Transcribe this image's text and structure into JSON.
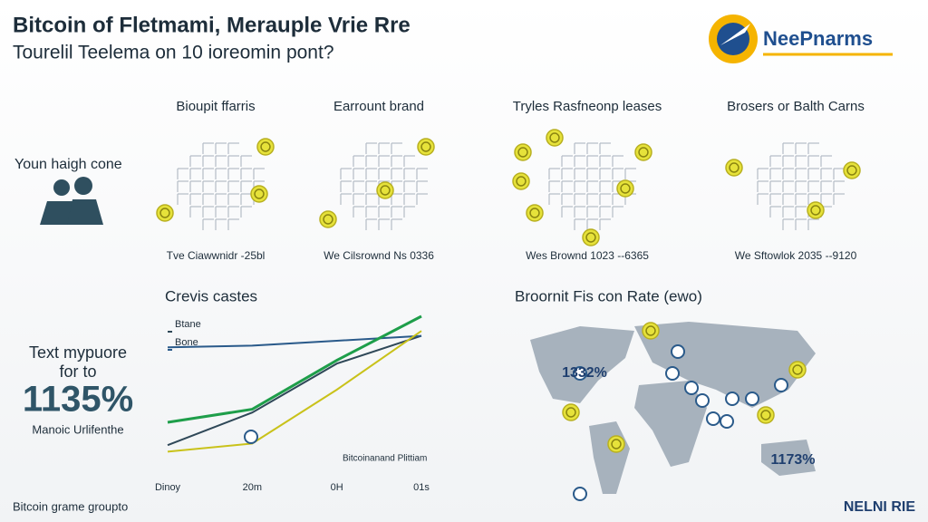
{
  "header": {
    "title": "Bitcoin of Fletmami, Merauple Vrie Rre",
    "subtitle": "Tourelil Teelema on 10 ioreomin pont?",
    "logo": "NeePnarms"
  },
  "panels": [
    {
      "title": "Bioupit ffarris",
      "caption": "Tve Ciawwnidr -25bl"
    },
    {
      "title": "Earrount brand",
      "caption": "We Cilsrownd Ns 0336"
    },
    {
      "title": "Tryles Rasfneonp leases",
      "caption": "Wes Brownd 1023 --6365"
    },
    {
      "title": "Brosers or Balth Carns",
      "caption": "We Sftowlok 2035 --9120"
    }
  ],
  "side": {
    "label": "Youn haigh cone",
    "stat_title": [
      "Text mypuore",
      "for to"
    ],
    "stat_value": "1135%",
    "stat_caption": "Manoic Urlifenthe"
  },
  "chart_data": {
    "type": "line",
    "title": "Crevis castes",
    "categories": [
      "Dinoy",
      "20m",
      "0H",
      "01s"
    ],
    "annotation": "Bitcoinanand Plittiam",
    "ylim": [
      0,
      100
    ],
    "series": [
      {
        "name": "Btane",
        "color": "#2f4858",
        "values": [
          16,
          36,
          66,
          83
        ]
      },
      {
        "name": "Bone",
        "color": "#2a5a8a",
        "values": [
          76,
          77,
          80,
          83
        ]
      },
      {
        "color": "#1e9e4a",
        "values": [
          30,
          38,
          68,
          95
        ]
      },
      {
        "color": "#c9c21a",
        "values": [
          12,
          17,
          50,
          86
        ]
      }
    ]
  },
  "map": {
    "title": "Broornit Fis con Rate (ewo)",
    "labels": [
      "1332%",
      "1173%"
    ]
  },
  "footer": {
    "left": "Bitcoin grame groupto",
    "right": "NELNI RIE"
  }
}
